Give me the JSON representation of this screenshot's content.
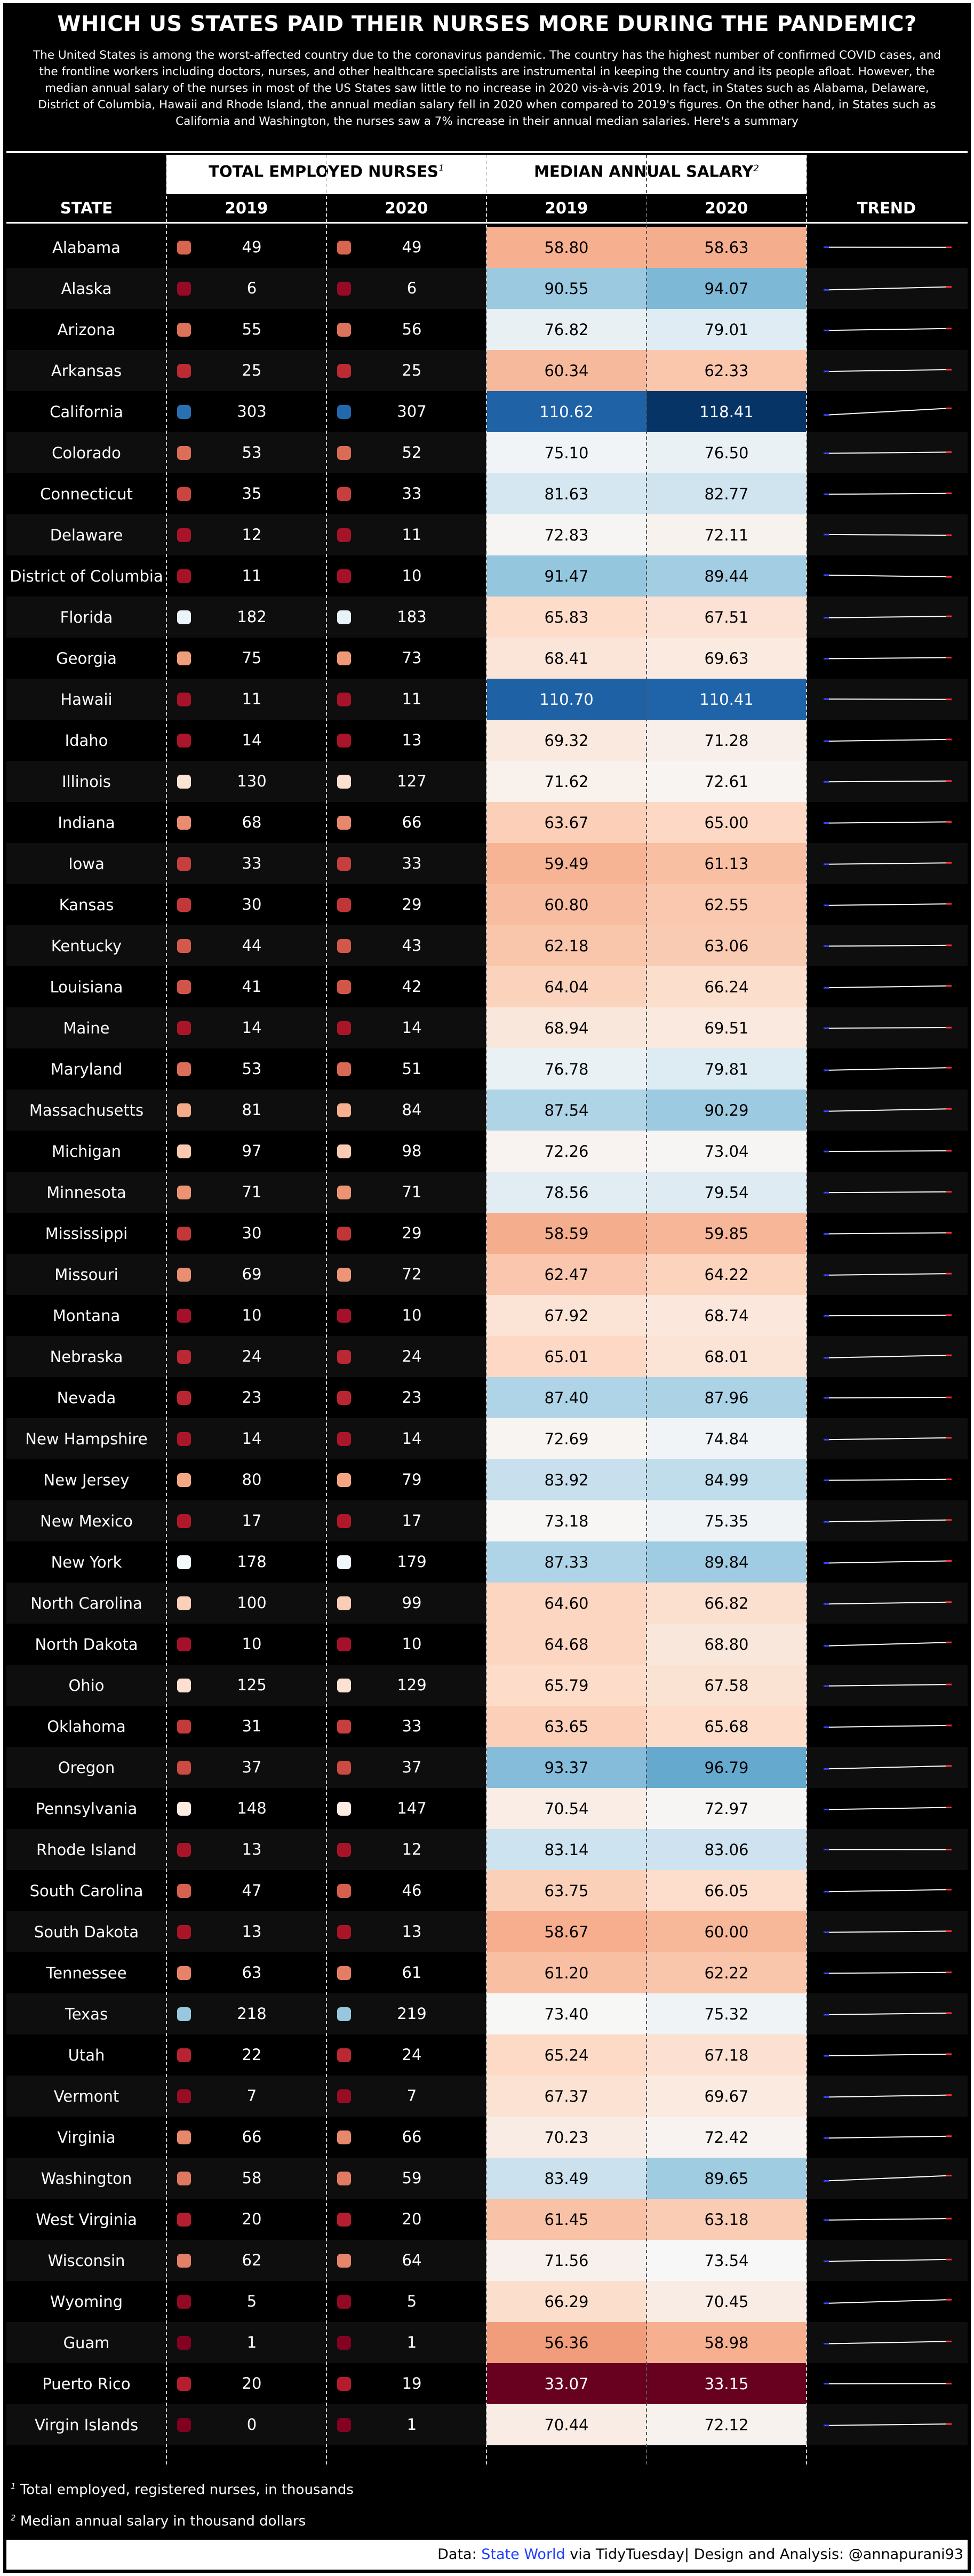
{
  "title": "WHICH US STATES PAID THEIR NURSES MORE DURING THE PANDEMIC?",
  "subtitle": "The United States is among the worst-affected country due to the coronavirus pandemic. The country has the highest number of confirmed COVID cases, and the frontline workers including doctors, nurses, and other healthcare specialists are instrumental in keeping the country and its people afloat. However, the median annual salary of the nurses in most of the US States saw little to no increase in 2020 vis-à-vis 2019. In fact, in States such as Alabama, Delaware, District of Columbia, Hawaii and Rhode Island, the annual median salary fell in 2020 when compared to 2019's figures. On the other hand, in States such as California and Washington, the nurses saw a 7% increase in their annual median salaries. Here's a summary",
  "group_headers": {
    "employed": "TOTAL EMPLOYED NURSES",
    "employed_note": "1",
    "salary": "MEDIAN ANNUAL SALARY",
    "salary_note": "2"
  },
  "columns": {
    "state": "STATE",
    "emp2019": "2019",
    "emp2020": "2020",
    "sal2019": "2019",
    "sal2020": "2020",
    "trend": "TREND"
  },
  "chart_data": {
    "type": "table",
    "colors": {
      "dot_scale": [
        "#800020",
        "#b2182b",
        "#d6604d",
        "#f4a582",
        "#fddbc7",
        "#ffffff",
        "#92c5de",
        "#4393c3",
        "#2166ac",
        "#053061"
      ],
      "salary_scale": [
        "#67001f",
        "#b2182b",
        "#d6604d",
        "#f4a582",
        "#fddbc7",
        "#f7f7f7",
        "#d1e5f0",
        "#92c5de",
        "#4393c3",
        "#2166ac",
        "#053061"
      ],
      "trend_line": "#ffffff",
      "trend_start": "#3344ff",
      "trend_end": "#ff3030"
    },
    "columns": [
      "State",
      "Employed 2019 (thousands)",
      "Employed 2020 (thousands)",
      "Median salary 2019 ($K)",
      "Median salary 2020 ($K)"
    ],
    "rows": [
      {
        "state": "Alabama",
        "emp2019": "49",
        "emp2020": "49",
        "sal2019": "58.80",
        "sal2020": "58.63"
      },
      {
        "state": "Alaska",
        "emp2019": "6",
        "emp2020": "6",
        "sal2019": "90.55",
        "sal2020": "94.07"
      },
      {
        "state": "Arizona",
        "emp2019": "55",
        "emp2020": "56",
        "sal2019": "76.82",
        "sal2020": "79.01"
      },
      {
        "state": "Arkansas",
        "emp2019": "25",
        "emp2020": "25",
        "sal2019": "60.34",
        "sal2020": "62.33"
      },
      {
        "state": "California",
        "emp2019": "303",
        "emp2020": "307",
        "sal2019": "110.62",
        "sal2020": "118.41"
      },
      {
        "state": "Colorado",
        "emp2019": "53",
        "emp2020": "52",
        "sal2019": "75.10",
        "sal2020": "76.50"
      },
      {
        "state": "Connecticut",
        "emp2019": "35",
        "emp2020": "33",
        "sal2019": "81.63",
        "sal2020": "82.77"
      },
      {
        "state": "Delaware",
        "emp2019": "12",
        "emp2020": "11",
        "sal2019": "72.83",
        "sal2020": "72.11"
      },
      {
        "state": "District of Columbia",
        "emp2019": "11",
        "emp2020": "10",
        "sal2019": "91.47",
        "sal2020": "89.44"
      },
      {
        "state": "Florida",
        "emp2019": "182",
        "emp2020": "183",
        "sal2019": "65.83",
        "sal2020": "67.51"
      },
      {
        "state": "Georgia",
        "emp2019": "75",
        "emp2020": "73",
        "sal2019": "68.41",
        "sal2020": "69.63"
      },
      {
        "state": "Hawaii",
        "emp2019": "11",
        "emp2020": "11",
        "sal2019": "110.70",
        "sal2020": "110.41"
      },
      {
        "state": "Idaho",
        "emp2019": "14",
        "emp2020": "13",
        "sal2019": "69.32",
        "sal2020": "71.28"
      },
      {
        "state": "Illinois",
        "emp2019": "130",
        "emp2020": "127",
        "sal2019": "71.62",
        "sal2020": "72.61"
      },
      {
        "state": "Indiana",
        "emp2019": "68",
        "emp2020": "66",
        "sal2019": "63.67",
        "sal2020": "65.00"
      },
      {
        "state": "Iowa",
        "emp2019": "33",
        "emp2020": "33",
        "sal2019": "59.49",
        "sal2020": "61.13"
      },
      {
        "state": "Kansas",
        "emp2019": "30",
        "emp2020": "29",
        "sal2019": "60.80",
        "sal2020": "62.55"
      },
      {
        "state": "Kentucky",
        "emp2019": "44",
        "emp2020": "43",
        "sal2019": "62.18",
        "sal2020": "63.06"
      },
      {
        "state": "Louisiana",
        "emp2019": "41",
        "emp2020": "42",
        "sal2019": "64.04",
        "sal2020": "66.24"
      },
      {
        "state": "Maine",
        "emp2019": "14",
        "emp2020": "14",
        "sal2019": "68.94",
        "sal2020": "69.51"
      },
      {
        "state": "Maryland",
        "emp2019": "53",
        "emp2020": "51",
        "sal2019": "76.78",
        "sal2020": "79.81"
      },
      {
        "state": "Massachusetts",
        "emp2019": "81",
        "emp2020": "84",
        "sal2019": "87.54",
        "sal2020": "90.29"
      },
      {
        "state": "Michigan",
        "emp2019": "97",
        "emp2020": "98",
        "sal2019": "72.26",
        "sal2020": "73.04"
      },
      {
        "state": "Minnesota",
        "emp2019": "71",
        "emp2020": "71",
        "sal2019": "78.56",
        "sal2020": "79.54"
      },
      {
        "state": "Mississippi",
        "emp2019": "30",
        "emp2020": "29",
        "sal2019": "58.59",
        "sal2020": "59.85"
      },
      {
        "state": "Missouri",
        "emp2019": "69",
        "emp2020": "72",
        "sal2019": "62.47",
        "sal2020": "64.22"
      },
      {
        "state": "Montana",
        "emp2019": "10",
        "emp2020": "10",
        "sal2019": "67.92",
        "sal2020": "68.74"
      },
      {
        "state": "Nebraska",
        "emp2019": "24",
        "emp2020": "24",
        "sal2019": "65.01",
        "sal2020": "68.01"
      },
      {
        "state": "Nevada",
        "emp2019": "23",
        "emp2020": "23",
        "sal2019": "87.40",
        "sal2020": "87.96"
      },
      {
        "state": "New Hampshire",
        "emp2019": "14",
        "emp2020": "14",
        "sal2019": "72.69",
        "sal2020": "74.84"
      },
      {
        "state": "New Jersey",
        "emp2019": "80",
        "emp2020": "79",
        "sal2019": "83.92",
        "sal2020": "84.99"
      },
      {
        "state": "New Mexico",
        "emp2019": "17",
        "emp2020": "17",
        "sal2019": "73.18",
        "sal2020": "75.35"
      },
      {
        "state": "New York",
        "emp2019": "178",
        "emp2020": "179",
        "sal2019": "87.33",
        "sal2020": "89.84"
      },
      {
        "state": "North Carolina",
        "emp2019": "100",
        "emp2020": "99",
        "sal2019": "64.60",
        "sal2020": "66.82"
      },
      {
        "state": "North Dakota",
        "emp2019": "10",
        "emp2020": "10",
        "sal2019": "64.68",
        "sal2020": "68.80"
      },
      {
        "state": "Ohio",
        "emp2019": "125",
        "emp2020": "129",
        "sal2019": "65.79",
        "sal2020": "67.58"
      },
      {
        "state": "Oklahoma",
        "emp2019": "31",
        "emp2020": "33",
        "sal2019": "63.65",
        "sal2020": "65.68"
      },
      {
        "state": "Oregon",
        "emp2019": "37",
        "emp2020": "37",
        "sal2019": "93.37",
        "sal2020": "96.79"
      },
      {
        "state": "Pennsylvania",
        "emp2019": "148",
        "emp2020": "147",
        "sal2019": "70.54",
        "sal2020": "72.97"
      },
      {
        "state": "Rhode Island",
        "emp2019": "13",
        "emp2020": "12",
        "sal2019": "83.14",
        "sal2020": "83.06"
      },
      {
        "state": "South Carolina",
        "emp2019": "47",
        "emp2020": "46",
        "sal2019": "63.75",
        "sal2020": "66.05"
      },
      {
        "state": "South Dakota",
        "emp2019": "13",
        "emp2020": "13",
        "sal2019": "58.67",
        "sal2020": "60.00"
      },
      {
        "state": "Tennessee",
        "emp2019": "63",
        "emp2020": "61",
        "sal2019": "61.20",
        "sal2020": "62.22"
      },
      {
        "state": "Texas",
        "emp2019": "218",
        "emp2020": "219",
        "sal2019": "73.40",
        "sal2020": "75.32"
      },
      {
        "state": "Utah",
        "emp2019": "22",
        "emp2020": "24",
        "sal2019": "65.24",
        "sal2020": "67.18"
      },
      {
        "state": "Vermont",
        "emp2019": "7",
        "emp2020": "7",
        "sal2019": "67.37",
        "sal2020": "69.67"
      },
      {
        "state": "Virginia",
        "emp2019": "66",
        "emp2020": "66",
        "sal2019": "70.23",
        "sal2020": "72.42"
      },
      {
        "state": "Washington",
        "emp2019": "58",
        "emp2020": "59",
        "sal2019": "83.49",
        "sal2020": "89.65"
      },
      {
        "state": "West Virginia",
        "emp2019": "20",
        "emp2020": "20",
        "sal2019": "61.45",
        "sal2020": "63.18"
      },
      {
        "state": "Wisconsin",
        "emp2019": "62",
        "emp2020": "64",
        "sal2019": "71.56",
        "sal2020": "73.54"
      },
      {
        "state": "Wyoming",
        "emp2019": "5",
        "emp2020": "5",
        "sal2019": "66.29",
        "sal2020": "70.45"
      },
      {
        "state": "Guam",
        "emp2019": "1",
        "emp2020": "1",
        "sal2019": "56.36",
        "sal2020": "58.98"
      },
      {
        "state": "Puerto Rico",
        "emp2019": "20",
        "emp2020": "19",
        "sal2019": "33.07",
        "sal2020": "33.15"
      },
      {
        "state": "Virgin Islands",
        "emp2019": "0",
        "emp2020": "1",
        "sal2019": "70.44",
        "sal2020": "72.12"
      }
    ]
  },
  "footnotes": {
    "n1": "1",
    "f1": "Total employed, registered nurses, in thousands",
    "n2": "2",
    "f2": "Median annual salary in thousand dollars"
  },
  "footer": {
    "data_prefix": "Data: ",
    "data_link": "State World",
    "data_suffix": " via TidyTuesday| Design and Analysis: @annapurani93"
  }
}
